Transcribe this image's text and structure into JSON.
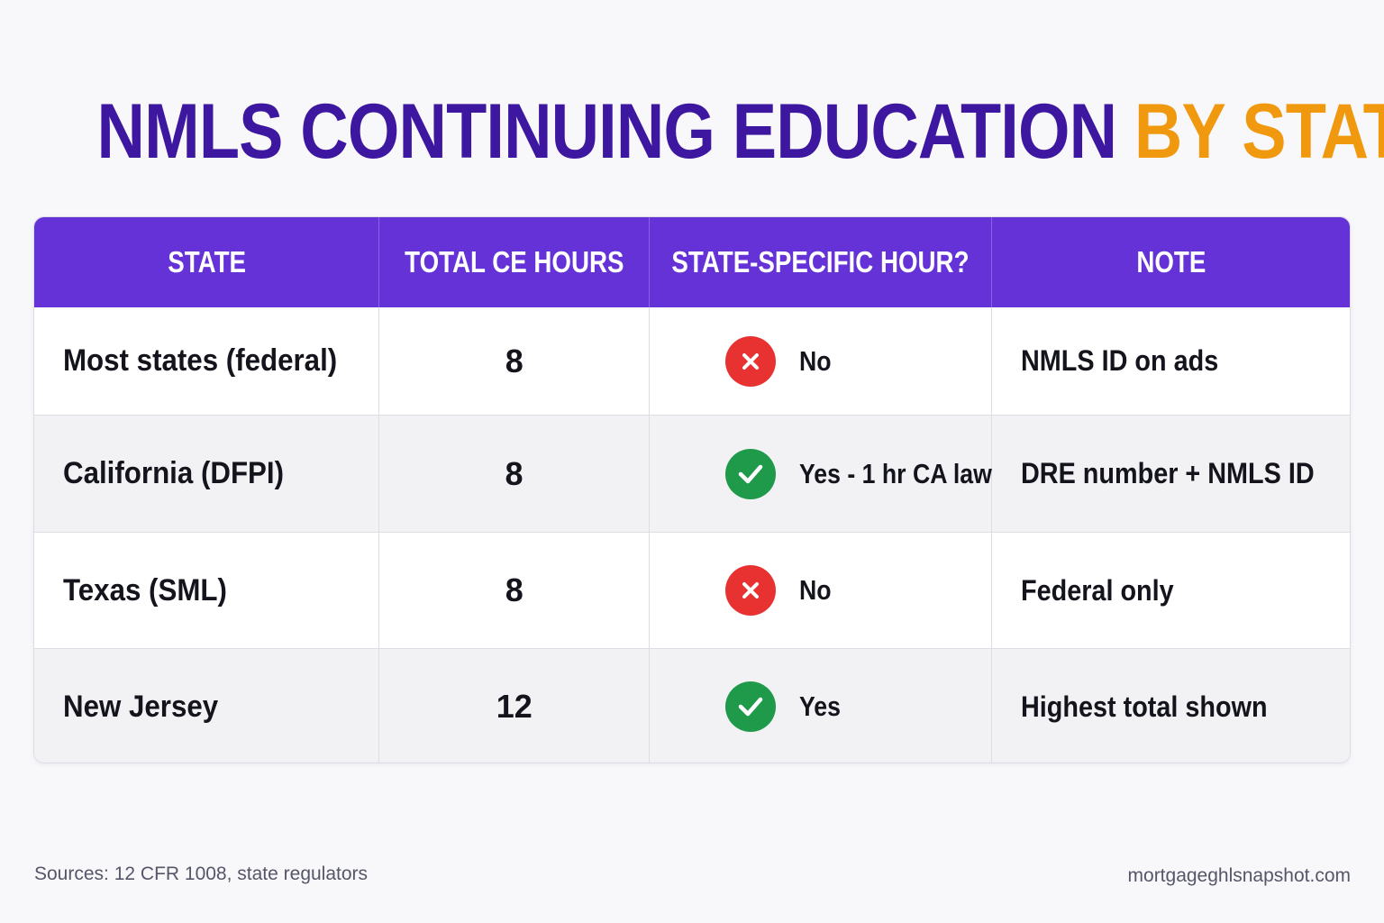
{
  "title": {
    "main": "NMLS CONTINUING EDUCATION",
    "accent": "BY STATE"
  },
  "colors": {
    "title_main": "#3d17a0",
    "title_accent": "#f0990f",
    "header_bg": "#6432d6",
    "no_icon": "#e83232",
    "yes_icon": "#1f9a4a"
  },
  "table": {
    "headers": [
      "STATE",
      "TOTAL CE HOURS",
      "STATE-SPECIFIC HOUR?",
      "NOTE"
    ],
    "rows": [
      {
        "state": "Most states (federal)",
        "hours": "8",
        "specific": "No",
        "specific_icon": "x-circle-icon",
        "note": "NMLS ID on ads"
      },
      {
        "state": "California (DFPI)",
        "hours": "8",
        "specific": "Yes - 1 hr CA law",
        "specific_icon": "check-circle-icon",
        "note": "DRE number + NMLS ID"
      },
      {
        "state": "Texas (SML)",
        "hours": "8",
        "specific": "No",
        "specific_icon": "x-circle-icon",
        "note": "Federal only"
      },
      {
        "state": "New Jersey",
        "hours": "12",
        "specific": "Yes",
        "specific_icon": "check-circle-icon",
        "note": "Highest total shown"
      }
    ]
  },
  "footer": {
    "sources": "Sources: 12 CFR 1008, state regulators",
    "site": "mortgageghlsnapshot.com"
  }
}
